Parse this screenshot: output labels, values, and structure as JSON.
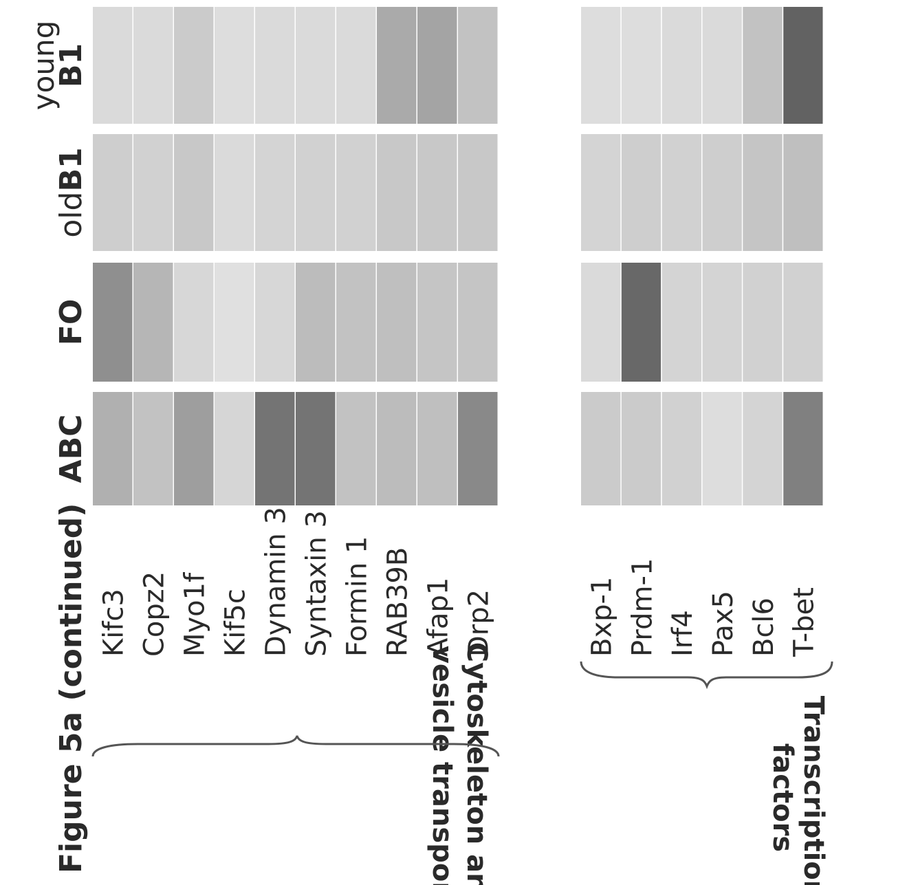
{
  "figure": {
    "title": "Figure 5a (continued)",
    "columns": [
      {
        "lines": [
          "ABC"
        ]
      },
      {
        "lines": [
          "FO"
        ]
      },
      {
        "lines": [
          "oldB1"
        ]
      },
      {
        "lines": [
          "young",
          "B1"
        ]
      }
    ],
    "groups": [
      {
        "label_lines": [
          "Cytoskeleton and",
          "vesicle transport"
        ]
      },
      {
        "label_lines": [
          "Transcription",
          "factors"
        ]
      }
    ]
  },
  "chart_data": {
    "type": "heatmap",
    "title": "Figure 5a (continued)",
    "columns": [
      "ABC",
      "FO",
      "oldB1",
      "young B1"
    ],
    "scale_note": "values are relative darkness 0 (light) to 1 (dark)",
    "groups": [
      {
        "name": "Cytoskeleton and vesicle transport",
        "rows": [
          "Kifc3",
          "Copz2",
          "Myo1f",
          "Kif5c",
          "Dynamin 3",
          "Syntaxin 3",
          "Formin 1",
          "RAB39B",
          "Afap1",
          "Drp2"
        ],
        "values": [
          [
            0.4,
            0.62,
            0.2,
            0.12
          ],
          [
            0.28,
            0.36,
            0.18,
            0.12
          ],
          [
            0.52,
            0.14,
            0.24,
            0.22
          ],
          [
            0.15,
            0.08,
            0.12,
            0.1
          ],
          [
            0.8,
            0.14,
            0.16,
            0.12
          ],
          [
            0.8,
            0.32,
            0.18,
            0.12
          ],
          [
            0.28,
            0.28,
            0.18,
            0.12
          ],
          [
            0.32,
            0.3,
            0.24,
            0.44
          ],
          [
            0.3,
            0.26,
            0.24,
            0.48
          ],
          [
            0.66,
            0.26,
            0.24,
            0.28
          ]
        ]
      },
      {
        "name": "Transcription factors",
        "rows": [
          "Bxp-1",
          "Prdm-1",
          "Irf4",
          "Pax5",
          "Bcl6",
          "T-bet"
        ],
        "values": [
          [
            0.22,
            0.12,
            0.16,
            0.1
          ],
          [
            0.22,
            0.88,
            0.2,
            0.1
          ],
          [
            0.18,
            0.16,
            0.18,
            0.12
          ],
          [
            0.1,
            0.16,
            0.2,
            0.12
          ],
          [
            0.16,
            0.18,
            0.26,
            0.28
          ],
          [
            0.72,
            0.18,
            0.3,
            0.92
          ]
        ]
      }
    ]
  }
}
